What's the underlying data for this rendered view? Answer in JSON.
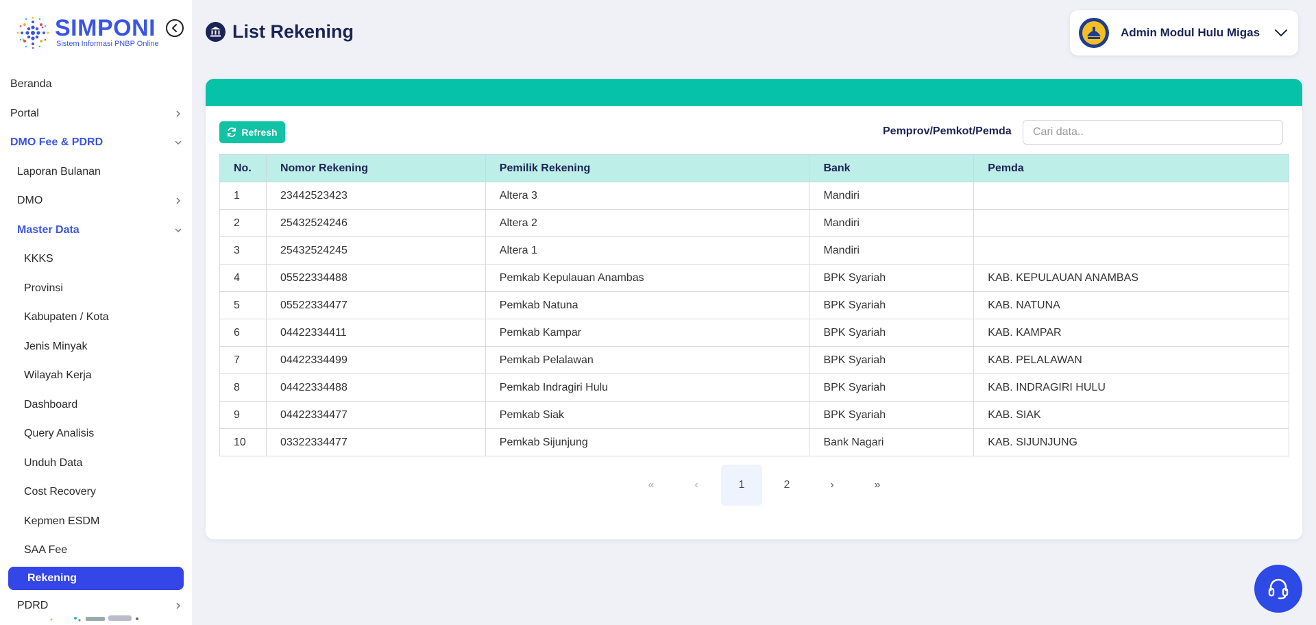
{
  "app": {
    "logo_title": "SIMPONI",
    "logo_subtitle": "Sistem Informasi PNBP Online"
  },
  "sidebar": {
    "items": [
      {
        "label": "Beranda"
      },
      {
        "label": "Portal"
      },
      {
        "label": "DMO Fee & PDRD"
      },
      {
        "label": "Laporan Bulanan"
      },
      {
        "label": "DMO"
      },
      {
        "label": "Master Data"
      },
      {
        "label": "KKKS"
      },
      {
        "label": "Provinsi"
      },
      {
        "label": "Kabupaten / Kota"
      },
      {
        "label": "Jenis Minyak"
      },
      {
        "label": "Wilayah Kerja"
      },
      {
        "label": "Dashboard"
      },
      {
        "label": "Query Analisis"
      },
      {
        "label": "Unduh Data"
      },
      {
        "label": "Cost Recovery"
      },
      {
        "label": "Kepmen ESDM"
      },
      {
        "label": "SAA Fee"
      },
      {
        "label": "Rekening"
      },
      {
        "label": "PDRD"
      }
    ]
  },
  "header": {
    "title": "List Rekening",
    "user_name": "Admin Modul Hulu Migas"
  },
  "toolbar": {
    "refresh_label": "Refresh",
    "search_label": "Pemprov/Pemkot/Pemda",
    "search_placeholder": "Cari data.."
  },
  "table": {
    "columns": [
      "No.",
      "Nomor Rekening",
      "Pemilik Rekening",
      "Bank",
      "Pemda"
    ],
    "rows": [
      [
        "1",
        "23442523423",
        "Altera 3",
        "Mandiri",
        ""
      ],
      [
        "2",
        "25432524246",
        "Altera 2",
        "Mandiri",
        ""
      ],
      [
        "3",
        "25432524245",
        "Altera 1",
        "Mandiri",
        ""
      ],
      [
        "4",
        "05522334488",
        "Pemkab Kepulauan Anambas",
        "BPK Syariah",
        "KAB. KEPULAUAN ANAMBAS"
      ],
      [
        "5",
        "05522334477",
        "Pemkab Natuna",
        "BPK Syariah",
        "KAB. NATUNA"
      ],
      [
        "6",
        "04422334411",
        "Pemkab Kampar",
        "BPK Syariah",
        "KAB. KAMPAR"
      ],
      [
        "7",
        "04422334499",
        "Pemkab Pelalawan",
        "BPK Syariah",
        "KAB. PELALAWAN"
      ],
      [
        "8",
        "04422334488",
        "Pemkab Indragiri Hulu",
        "BPK Syariah",
        "KAB. INDRAGIRI HULU"
      ],
      [
        "9",
        "04422334477",
        "Pemkab Siak",
        "BPK Syariah",
        "KAB. SIAK"
      ],
      [
        "10",
        "03322334477",
        "Pemkab Sijunjung",
        "Bank Nagari",
        "KAB. SIJUNJUNG"
      ]
    ]
  },
  "pagination": {
    "first": "«",
    "prev": "‹",
    "pages": [
      "1",
      "2"
    ],
    "current": "1",
    "next": "›",
    "last": "»"
  },
  "colors": {
    "accent": "#3446e8",
    "teal": "#06c2a9",
    "header_fill": "#bdeee8",
    "navy": "#1b2456"
  },
  "icons": {
    "collapse": "chevron-left-circle-icon",
    "title": "bank-icon",
    "refresh": "refresh-icon",
    "help": "headset-icon"
  }
}
